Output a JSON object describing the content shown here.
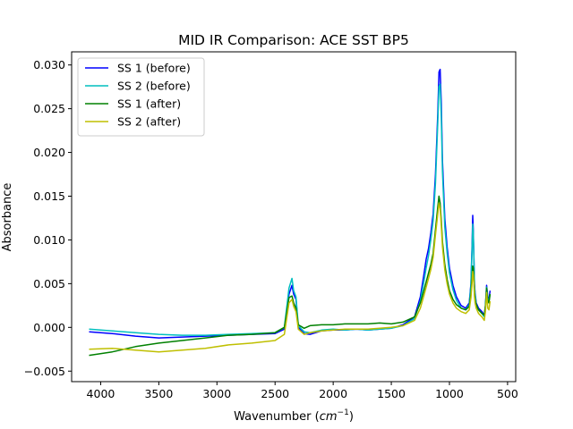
{
  "chart_data": {
    "type": "line",
    "title": "MID IR Comparison: ACE SST BP5",
    "xlabel": "Wavenumber",
    "xlabel_unit_base": "cm",
    "xlabel_unit_exp": "−1",
    "ylabel": "Absorbance",
    "xlim": [
      4250,
      430
    ],
    "ylim": [
      -0.0062,
      0.0315
    ],
    "x_reversed": true,
    "grid": false,
    "legend_position": "upper-left",
    "xticks": [
      4000,
      3500,
      3000,
      2500,
      2000,
      1500,
      1000,
      500
    ],
    "xtick_labels": [
      "4000",
      "3500",
      "3000",
      "2500",
      "2000",
      "1500",
      "1000",
      "500"
    ],
    "yticks": [
      -0.005,
      0,
      0.005,
      0.01,
      0.015,
      0.02,
      0.025,
      0.03
    ],
    "ytick_labels": [
      "−0.005",
      "0.000",
      "0.005",
      "0.010",
      "0.015",
      "0.020",
      "0.025",
      "0.030"
    ],
    "series": [
      {
        "name": "SS 1 (before)",
        "color": "#0000ff",
        "x": [
          4100,
          3900,
          3700,
          3500,
          3300,
          3100,
          2900,
          2700,
          2500,
          2420,
          2380,
          2355,
          2340,
          2320,
          2300,
          2250,
          2200,
          2100,
          2000,
          1900,
          1800,
          1700,
          1600,
          1500,
          1400,
          1300,
          1250,
          1220,
          1200,
          1180,
          1160,
          1140,
          1120,
          1100,
          1090,
          1080,
          1070,
          1060,
          1040,
          1020,
          1000,
          970,
          940,
          900,
          860,
          830,
          815,
          805,
          800,
          795,
          790,
          785,
          780,
          770,
          750,
          720,
          700,
          690,
          680,
          670,
          660,
          650
        ],
        "y": [
          -0.0005,
          -0.0007,
          -0.001,
          -0.0012,
          -0.0011,
          -0.001,
          -0.0009,
          -0.0008,
          -0.0007,
          -0.0002,
          0.0038,
          0.0048,
          0.0038,
          0.0032,
          0.0,
          -0.0007,
          -0.0008,
          -0.0004,
          -0.0003,
          -0.0003,
          -0.0002,
          -0.0003,
          -0.0002,
          -0.0001,
          0.0003,
          0.0012,
          0.0035,
          0.006,
          0.0078,
          0.009,
          0.0108,
          0.013,
          0.0175,
          0.0245,
          0.0292,
          0.0295,
          0.0255,
          0.019,
          0.0125,
          0.0092,
          0.0068,
          0.0048,
          0.0035,
          0.0025,
          0.0022,
          0.0028,
          0.005,
          0.0095,
          0.0128,
          0.0112,
          0.008,
          0.005,
          0.004,
          0.0028,
          0.0022,
          0.0018,
          0.0014,
          0.0025,
          0.0048,
          0.0035,
          0.0032,
          0.0042
        ]
      },
      {
        "name": "SS 2 (before)",
        "color": "#00bfbf",
        "x": [
          4100,
          3900,
          3700,
          3500,
          3300,
          3100,
          2900,
          2700,
          2500,
          2420,
          2380,
          2355,
          2340,
          2320,
          2300,
          2250,
          2200,
          2100,
          2000,
          1900,
          1800,
          1700,
          1600,
          1500,
          1400,
          1300,
          1250,
          1220,
          1200,
          1180,
          1160,
          1140,
          1120,
          1100,
          1090,
          1080,
          1070,
          1060,
          1040,
          1020,
          1000,
          970,
          940,
          900,
          860,
          830,
          815,
          805,
          800,
          795,
          790,
          785,
          780,
          770,
          750,
          720,
          700,
          690,
          680,
          670,
          660,
          650
        ],
        "y": [
          -0.0002,
          -0.0004,
          -0.0006,
          -0.0008,
          -0.0009,
          -0.0009,
          -0.0008,
          -0.0007,
          -0.0006,
          0.0,
          0.0045,
          0.0056,
          0.0042,
          0.0035,
          0.0002,
          -0.0005,
          -0.0006,
          -0.0003,
          -0.0002,
          -0.0003,
          -0.0002,
          -0.0003,
          -0.0002,
          -0.0001,
          0.0002,
          0.001,
          0.003,
          0.0052,
          0.0068,
          0.0082,
          0.01,
          0.0122,
          0.0165,
          0.0235,
          0.0275,
          0.0278,
          0.024,
          0.0178,
          0.0115,
          0.0085,
          0.0062,
          0.0043,
          0.0031,
          0.0022,
          0.002,
          0.0026,
          0.0048,
          0.009,
          0.0118,
          0.0108,
          0.0078,
          0.0048,
          0.0038,
          0.0026,
          0.002,
          0.0016,
          0.0012,
          0.0024,
          0.0046,
          0.0033,
          0.003,
          0.0038
        ]
      },
      {
        "name": "SS 1 (after)",
        "color": "#008000",
        "x": [
          4100,
          3900,
          3700,
          3500,
          3300,
          3100,
          2900,
          2700,
          2500,
          2420,
          2380,
          2355,
          2340,
          2320,
          2300,
          2250,
          2200,
          2100,
          2000,
          1900,
          1800,
          1700,
          1600,
          1500,
          1400,
          1300,
          1250,
          1220,
          1200,
          1180,
          1160,
          1140,
          1120,
          1100,
          1090,
          1080,
          1070,
          1060,
          1040,
          1020,
          1000,
          970,
          940,
          900,
          860,
          830,
          815,
          805,
          800,
          795,
          790,
          785,
          780,
          770,
          750,
          720,
          700,
          690,
          680,
          670,
          660,
          650
        ],
        "y": [
          -0.0032,
          -0.0028,
          -0.0022,
          -0.0018,
          -0.0015,
          -0.0012,
          -0.0009,
          -0.0008,
          -0.0006,
          0.0,
          0.0034,
          0.0036,
          0.0028,
          0.0022,
          0.0003,
          -0.0001,
          0.0002,
          0.0003,
          0.0003,
          0.0004,
          0.0004,
          0.0004,
          0.0005,
          0.0004,
          0.0006,
          0.0012,
          0.0028,
          0.0042,
          0.0052,
          0.0062,
          0.0072,
          0.0085,
          0.0112,
          0.0138,
          0.015,
          0.0142,
          0.0122,
          0.0098,
          0.0072,
          0.0055,
          0.0042,
          0.0032,
          0.0026,
          0.0022,
          0.002,
          0.0024,
          0.0038,
          0.0058,
          0.007,
          0.0068,
          0.0056,
          0.004,
          0.0032,
          0.0026,
          0.002,
          0.0016,
          0.0014,
          0.0024,
          0.0045,
          0.003,
          0.0028,
          0.0038
        ]
      },
      {
        "name": "SS 2 (after)",
        "color": "#bfbf00",
        "x": [
          4100,
          3900,
          3700,
          3500,
          3300,
          3100,
          2900,
          2700,
          2500,
          2420,
          2380,
          2355,
          2340,
          2320,
          2300,
          2250,
          2200,
          2100,
          2000,
          1900,
          1800,
          1700,
          1600,
          1500,
          1400,
          1300,
          1250,
          1220,
          1200,
          1180,
          1160,
          1140,
          1120,
          1100,
          1090,
          1080,
          1070,
          1060,
          1040,
          1020,
          1000,
          970,
          940,
          900,
          860,
          830,
          815,
          805,
          800,
          795,
          790,
          785,
          780,
          770,
          750,
          720,
          700,
          690,
          680,
          670,
          660,
          650
        ],
        "y": [
          -0.0025,
          -0.0024,
          -0.0026,
          -0.0028,
          -0.0026,
          -0.0024,
          -0.002,
          -0.0018,
          -0.0015,
          -0.0008,
          0.0028,
          0.0032,
          0.0024,
          0.0018,
          -0.0002,
          -0.0008,
          -0.0006,
          -0.0004,
          -0.0003,
          -0.0002,
          -0.0002,
          -0.0002,
          -0.0001,
          0.0,
          0.0002,
          0.0008,
          0.0022,
          0.0036,
          0.0046,
          0.0056,
          0.0066,
          0.008,
          0.0106,
          0.013,
          0.0142,
          0.0136,
          0.0116,
          0.0092,
          0.0066,
          0.005,
          0.0038,
          0.0028,
          0.0022,
          0.0018,
          0.0016,
          0.002,
          0.0034,
          0.0052,
          0.0064,
          0.006,
          0.005,
          0.0036,
          0.0028,
          0.0022,
          0.0016,
          0.0012,
          0.0008,
          0.0018,
          0.004,
          0.0022,
          0.002,
          0.003
        ]
      }
    ]
  }
}
